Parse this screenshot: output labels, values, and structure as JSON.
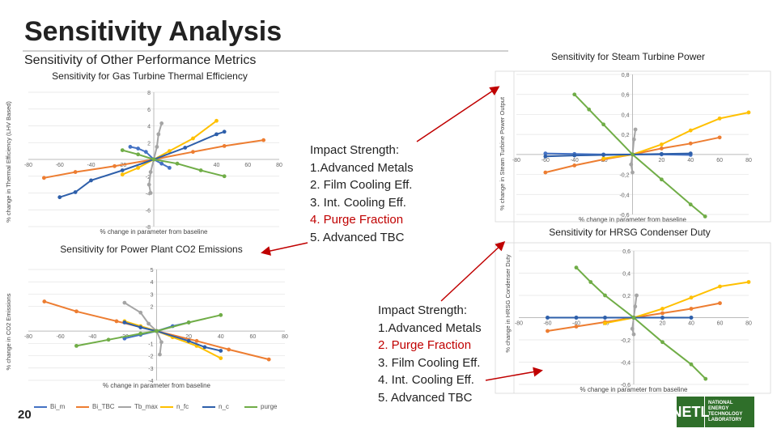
{
  "slide": {
    "title": "Sensitivity Analysis",
    "subtitle": "Sensitivity of Other Performance Metrics",
    "slide_number": "20"
  },
  "impact_upper": {
    "heading": "Impact Strength:",
    "items": [
      {
        "text": "1.Advanced Metals",
        "highlight": false
      },
      {
        "text": "2. Film Cooling Eff.",
        "highlight": false
      },
      {
        "text": "3. Int. Cooling Eff.",
        "highlight": false
      },
      {
        "text": "4. Purge Fraction",
        "highlight": true
      },
      {
        "text": "5. Advanced TBC",
        "highlight": false
      }
    ]
  },
  "impact_lower": {
    "heading": "Impact Strength:",
    "items": [
      {
        "text": "1.Advanced Metals",
        "highlight": false
      },
      {
        "text": "2. Purge Fraction",
        "highlight": true
      },
      {
        "text": "3. Film Cooling Eff.",
        "highlight": false
      },
      {
        "text": "4. Int. Cooling Eff.",
        "highlight": false
      },
      {
        "text": "5. Advanced TBC",
        "highlight": false
      }
    ]
  },
  "legend": [
    {
      "name": "Bi_m",
      "color": "#4472c4"
    },
    {
      "name": "Bi_TBC",
      "color": "#ed7d31"
    },
    {
      "name": "Tb_max",
      "color": "#a5a5a5"
    },
    {
      "name": "n_fc",
      "color": "#ffc000"
    },
    {
      "name": "n_c",
      "color": "#2e5faa"
    },
    {
      "name": "purge",
      "color": "#70ad47"
    }
  ],
  "logo": {
    "mark": "NETL",
    "lines": [
      "NATIONAL",
      "ENERGY",
      "TECHNOLOGY",
      "LABORATORY"
    ]
  },
  "colors": {
    "accent_red": "#c00000",
    "logo_green": "#2f6f2a"
  },
  "chart_data": [
    {
      "id": "gt",
      "type": "line",
      "title": "Sensitivity for Gas Turbine Thermal Efficiency",
      "xlabel": "% change in parameter from baseline",
      "ylabel": "% change in Thermal Efficiency (LHV Based)",
      "x_ticks": [
        "-80",
        "-60",
        "-40",
        "-20",
        "",
        "40",
        "60",
        "80"
      ],
      "y_ticks": [
        "8",
        "6",
        "4",
        "2",
        "-2",
        "-4",
        "-6",
        "-8"
      ],
      "xlim": [
        -80,
        80
      ],
      "ylim": [
        -8,
        8
      ],
      "series": [
        {
          "name": "Bi_m",
          "color": "#4472c4",
          "points": [
            [
              -15,
              1.5
            ],
            [
              -10,
              1.3
            ],
            [
              -5,
              0.9
            ],
            [
              0,
              0
            ],
            [
              5,
              -0.5
            ],
            [
              10,
              -1.0
            ]
          ]
        },
        {
          "name": "Bi_TBC",
          "color": "#ed7d31",
          "points": [
            [
              -70,
              -2.2
            ],
            [
              -50,
              -1.5
            ],
            [
              -25,
              -0.8
            ],
            [
              0,
              0
            ],
            [
              25,
              0.9
            ],
            [
              45,
              1.6
            ],
            [
              70,
              2.3
            ]
          ]
        },
        {
          "name": "Tb_max",
          "color": "#a5a5a5",
          "points": [
            [
              5,
              4.3
            ],
            [
              3,
              3.0
            ],
            [
              2,
              1.5
            ],
            [
              0,
              0
            ],
            [
              -2,
              -1.5
            ],
            [
              -3,
              -3.0
            ],
            [
              -2,
              -4.0
            ]
          ]
        },
        {
          "name": "n_fc",
          "color": "#ffc000",
          "points": [
            [
              -20,
              -1.8
            ],
            [
              -10,
              -1.0
            ],
            [
              0,
              0
            ],
            [
              10,
              1.0
            ],
            [
              25,
              2.5
            ],
            [
              40,
              4.6
            ]
          ]
        },
        {
          "name": "n_c",
          "color": "#2e5faa",
          "points": [
            [
              -60,
              -4.5
            ],
            [
              -50,
              -3.9
            ],
            [
              -40,
              -2.5
            ],
            [
              -20,
              -1.3
            ],
            [
              0,
              0
            ],
            [
              20,
              1.4
            ],
            [
              40,
              3.0
            ],
            [
              45,
              3.3
            ]
          ]
        },
        {
          "name": "purge",
          "color": "#70ad47",
          "points": [
            [
              -20,
              1.1
            ],
            [
              -10,
              0.6
            ],
            [
              0,
              0
            ],
            [
              15,
              -0.5
            ],
            [
              30,
              -1.3
            ],
            [
              45,
              -2.0
            ]
          ]
        }
      ]
    },
    {
      "id": "st",
      "type": "line",
      "title": "Sensitivity for Steam Turbine Power",
      "xlabel": "% change in parameter from baseline",
      "ylabel": "% change in Steam Turbine Power Output",
      "x_ticks": [
        "-80",
        "-60",
        "-40",
        "-20",
        "",
        "20",
        "40",
        "60",
        "80"
      ],
      "y_ticks": [
        "0,8",
        "0,6",
        "0,4",
        "0,2",
        "-0,2",
        "-0,4",
        "-0,6"
      ],
      "xlim": [
        -80,
        80
      ],
      "ylim": [
        -0.6,
        0.8
      ],
      "series": [
        {
          "name": "Bi_m",
          "color": "#4472c4",
          "points": [
            [
              -60,
              0.01
            ],
            [
              -40,
              0.005
            ],
            [
              -20,
              0.0
            ],
            [
              0,
              0
            ],
            [
              20,
              0.0
            ],
            [
              40,
              -0.005
            ]
          ]
        },
        {
          "name": "Bi_TBC",
          "color": "#ed7d31",
          "points": [
            [
              -60,
              -0.18
            ],
            [
              -40,
              -0.11
            ],
            [
              -20,
              -0.05
            ],
            [
              0,
              0
            ],
            [
              20,
              0.06
            ],
            [
              40,
              0.11
            ],
            [
              60,
              0.17
            ]
          ]
        },
        {
          "name": "Tb_max",
          "color": "#a5a5a5",
          "points": [
            [
              2,
              0.25
            ],
            [
              1,
              0.15
            ],
            [
              0,
              0
            ],
            [
              -1,
              -0.1
            ],
            [
              0,
              -0.18
            ]
          ]
        },
        {
          "name": "n_fc",
          "color": "#ffc000",
          "points": [
            [
              -20,
              -0.04
            ],
            [
              0,
              0
            ],
            [
              20,
              0.1
            ],
            [
              40,
              0.24
            ],
            [
              60,
              0.36
            ],
            [
              80,
              0.42
            ]
          ]
        },
        {
          "name": "n_c",
          "color": "#2e5faa",
          "points": [
            [
              -60,
              -0.02
            ],
            [
              -40,
              -0.01
            ],
            [
              -20,
              -0.005
            ],
            [
              0,
              0
            ],
            [
              20,
              0.005
            ],
            [
              40,
              0.01
            ]
          ]
        },
        {
          "name": "purge",
          "color": "#70ad47",
          "points": [
            [
              -40,
              0.6
            ],
            [
              -30,
              0.45
            ],
            [
              -20,
              0.3
            ],
            [
              0,
              0
            ],
            [
              20,
              -0.25
            ],
            [
              40,
              -0.5
            ],
            [
              50,
              -0.62
            ]
          ]
        }
      ]
    },
    {
      "id": "co2",
      "type": "line",
      "title": "Sensitivity for Power Plant CO2 Emissions",
      "xlabel": "% change in parameter from baseline",
      "ylabel": "% change in CO2 Emissions",
      "x_ticks": [
        "-80",
        "-60",
        "-40",
        "-20",
        "",
        "20",
        "40",
        "60",
        "80"
      ],
      "y_ticks": [
        "5",
        "4",
        "3",
        "2",
        "-1",
        "-2",
        "-3",
        "-4"
      ],
      "xlim": [
        -80,
        80
      ],
      "ylim": [
        -4,
        5
      ],
      "series": [
        {
          "name": "Bi_m",
          "color": "#4472c4",
          "points": [
            [
              -20,
              -0.6
            ],
            [
              -10,
              -0.3
            ],
            [
              0,
              0
            ],
            [
              10,
              0.4
            ],
            [
              20,
              0.7
            ]
          ]
        },
        {
          "name": "Bi_TBC",
          "color": "#ed7d31",
          "points": [
            [
              -70,
              2.4
            ],
            [
              -50,
              1.6
            ],
            [
              -25,
              0.8
            ],
            [
              0,
              0
            ],
            [
              25,
              -0.8
            ],
            [
              45,
              -1.5
            ],
            [
              70,
              -2.3
            ]
          ]
        },
        {
          "name": "Tb_max",
          "color": "#a5a5a5",
          "points": [
            [
              -20,
              2.3
            ],
            [
              -10,
              1.5
            ],
            [
              -5,
              0.6
            ],
            [
              0,
              0
            ],
            [
              3,
              -0.9
            ],
            [
              2,
              -1.9
            ]
          ]
        },
        {
          "name": "n_fc",
          "color": "#ffc000",
          "points": [
            [
              -20,
              0.8
            ],
            [
              -10,
              0.4
            ],
            [
              0,
              0
            ],
            [
              10,
              -0.5
            ],
            [
              25,
              -1.2
            ],
            [
              40,
              -2.2
            ]
          ]
        },
        {
          "name": "n_c",
          "color": "#2e5faa",
          "points": [
            [
              -20,
              0.7
            ],
            [
              -10,
              0.3
            ],
            [
              0,
              0
            ],
            [
              20,
              -0.8
            ],
            [
              30,
              -1.3
            ],
            [
              40,
              -1.6
            ]
          ]
        },
        {
          "name": "purge",
          "color": "#70ad47",
          "points": [
            [
              -50,
              -1.2
            ],
            [
              -30,
              -0.7
            ],
            [
              -10,
              -0.2
            ],
            [
              0,
              0
            ],
            [
              20,
              0.7
            ],
            [
              40,
              1.3
            ]
          ]
        }
      ]
    },
    {
      "id": "hrsg",
      "type": "line",
      "title": "Sensitivity for HRSG Condenser Duty",
      "xlabel": "% change in parameter from baseline",
      "ylabel": "% change in HRSG Condenser Duty",
      "x_ticks": [
        "-80",
        "-60",
        "-40",
        "-20",
        "",
        "20",
        "40",
        "60",
        "80"
      ],
      "y_ticks": [
        "0,6",
        "0,4",
        "0,2",
        "-0,2",
        "-0,4",
        "-0,6"
      ],
      "xlim": [
        -80,
        80
      ],
      "ylim": [
        -0.6,
        0.6
      ],
      "series": [
        {
          "name": "Bi_m",
          "color": "#4472c4",
          "points": [
            [
              -60,
              0.0
            ],
            [
              -40,
              0.0
            ],
            [
              -20,
              0.0
            ],
            [
              0,
              0
            ],
            [
              20,
              0.0
            ],
            [
              40,
              0.0
            ]
          ]
        },
        {
          "name": "Bi_TBC",
          "color": "#ed7d31",
          "points": [
            [
              -60,
              -0.12
            ],
            [
              -40,
              -0.08
            ],
            [
              -20,
              -0.04
            ],
            [
              0,
              0
            ],
            [
              20,
              0.04
            ],
            [
              40,
              0.08
            ],
            [
              60,
              0.13
            ]
          ]
        },
        {
          "name": "Tb_max",
          "color": "#a5a5a5",
          "points": [
            [
              2,
              0.2
            ],
            [
              1,
              0.1
            ],
            [
              0,
              0
            ],
            [
              -1,
              -0.1
            ],
            [
              0,
              -0.15
            ]
          ]
        },
        {
          "name": "n_fc",
          "color": "#ffc000",
          "points": [
            [
              -20,
              -0.05
            ],
            [
              0,
              0
            ],
            [
              20,
              0.08
            ],
            [
              40,
              0.18
            ],
            [
              60,
              0.28
            ],
            [
              80,
              0.32
            ]
          ]
        },
        {
          "name": "n_c",
          "color": "#2e5faa",
          "points": [
            [
              -60,
              0.0
            ],
            [
              -40,
              0.0
            ],
            [
              -20,
              0.0
            ],
            [
              0,
              0
            ],
            [
              20,
              0.0
            ],
            [
              40,
              0.0
            ]
          ]
        },
        {
          "name": "purge",
          "color": "#70ad47",
          "points": [
            [
              -40,
              0.45
            ],
            [
              -30,
              0.32
            ],
            [
              -20,
              0.2
            ],
            [
              0,
              0
            ],
            [
              20,
              -0.22
            ],
            [
              40,
              -0.42
            ],
            [
              50,
              -0.55
            ]
          ]
        }
      ]
    }
  ]
}
